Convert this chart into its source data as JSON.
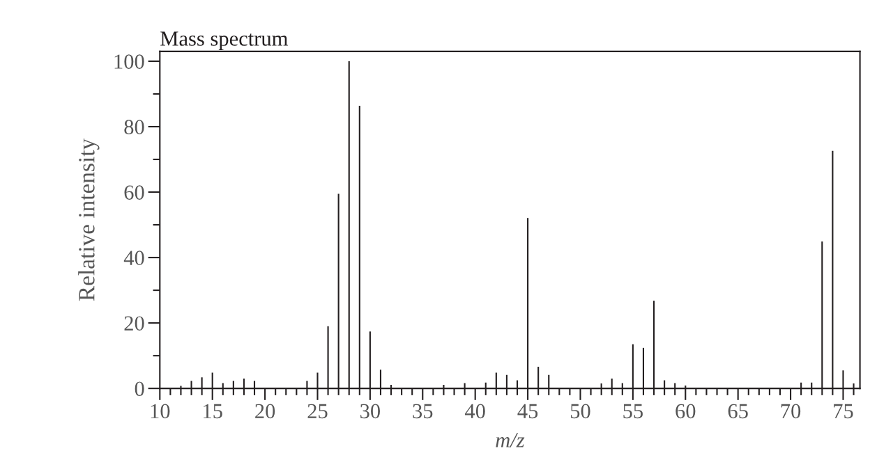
{
  "chart_data": {
    "type": "bar",
    "title": "Mass spectrum",
    "xlabel": "m/z",
    "ylabel": "Relative intensity",
    "x": [
      12,
      13,
      14,
      15,
      16,
      17,
      18,
      19,
      24,
      25,
      26,
      27,
      28,
      29,
      30,
      31,
      32,
      37,
      39,
      41,
      42,
      43,
      44,
      45,
      46,
      47,
      52,
      53,
      54,
      55,
      56,
      57,
      58,
      59,
      60,
      71,
      72,
      73,
      74,
      75,
      76
    ],
    "values": [
      0.8,
      2.3,
      3.4,
      4.8,
      1.6,
      2.3,
      3.0,
      2.3,
      2.3,
      4.8,
      19.0,
      59.5,
      100,
      86.4,
      17.4,
      5.7,
      1.1,
      1.1,
      1.6,
      1.8,
      4.8,
      4.1,
      2.5,
      52.1,
      6.6,
      4.1,
      1.5,
      3.0,
      1.6,
      13.5,
      12.4,
      26.8,
      2.5,
      1.6,
      0.9,
      1.8,
      1.8,
      44.9,
      72.6,
      5.5,
      1.5
    ],
    "color": "#231f20",
    "xlim": [
      10,
      76.6
    ],
    "ylim": [
      0,
      103
    ],
    "xticks": [
      10,
      {
        "value": 11,
        "label": null
      },
      {
        "value": 12,
        "label": null
      },
      {
        "value": 13,
        "label": null
      },
      {
        "value": 14,
        "label": null
      },
      15,
      {
        "value": 16,
        "label": null
      },
      {
        "value": 17,
        "label": null
      },
      {
        "value": 18,
        "label": null
      },
      {
        "value": 19,
        "label": null
      },
      20,
      {
        "value": 21,
        "label": null
      },
      {
        "value": 22,
        "label": null
      },
      {
        "value": 23,
        "label": null
      },
      {
        "value": 24,
        "label": null
      },
      25,
      {
        "value": 26,
        "label": null
      },
      {
        "value": 27,
        "label": null
      },
      {
        "value": 28,
        "label": null
      },
      {
        "value": 29,
        "label": null
      },
      30,
      {
        "value": 31,
        "label": null
      },
      {
        "value": 32,
        "label": null
      },
      {
        "value": 33,
        "label": null
      },
      {
        "value": 34,
        "label": null
      },
      35,
      {
        "value": 36,
        "label": null
      },
      {
        "value": 37,
        "label": null
      },
      {
        "value": 38,
        "label": null
      },
      {
        "value": 39,
        "label": null
      },
      40,
      {
        "value": 41,
        "label": null
      },
      {
        "value": 42,
        "label": null
      },
      {
        "value": 43,
        "label": null
      },
      {
        "value": 44,
        "label": null
      },
      45,
      {
        "value": 46,
        "label": null
      },
      {
        "value": 47,
        "label": null
      },
      {
        "value": 48,
        "label": null
      },
      {
        "value": 49,
        "label": null
      },
      50,
      {
        "value": 51,
        "label": null
      },
      {
        "value": 52,
        "label": null
      },
      {
        "value": 53,
        "label": null
      },
      {
        "value": 54,
        "label": null
      },
      55,
      {
        "value": 56,
        "label": null
      },
      {
        "value": 57,
        "label": null
      },
      {
        "value": 58,
        "label": null
      },
      {
        "value": 59,
        "label": null
      },
      60,
      {
        "value": 61,
        "label": null
      },
      {
        "value": 62,
        "label": null
      },
      {
        "value": 63,
        "label": null
      },
      {
        "value": 64,
        "label": null
      },
      65,
      {
        "value": 66,
        "label": null
      },
      {
        "value": 67,
        "label": null
      },
      {
        "value": 68,
        "label": null
      },
      {
        "value": 69,
        "label": null
      },
      70,
      {
        "value": 71,
        "label": null
      },
      {
        "value": 72,
        "label": null
      },
      {
        "value": 73,
        "label": null
      },
      {
        "value": 74,
        "label": null
      },
      75,
      {
        "value": 76,
        "label": null
      }
    ],
    "yticks": [
      0,
      {
        "value": 10,
        "label": null
      },
      20,
      {
        "value": 30,
        "label": null
      },
      40,
      {
        "value": 50,
        "label": null
      },
      60,
      {
        "value": 70,
        "label": null
      },
      80,
      {
        "value": 90,
        "label": null
      },
      100
    ],
    "grid": false
  }
}
